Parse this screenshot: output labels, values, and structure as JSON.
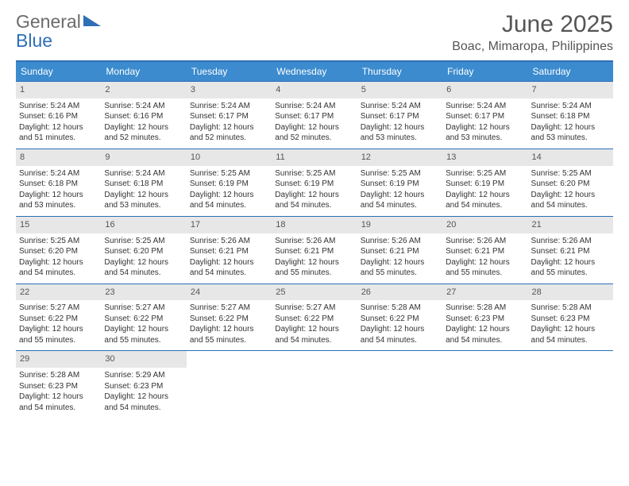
{
  "brand": {
    "left": "General",
    "right": "Blue"
  },
  "title": "June 2025",
  "location": "Boac, Mimaropa, Philippines",
  "colors": {
    "header_bg": "#3b8bce",
    "border": "#2e6fb5",
    "daynum_bg": "#e7e7e7",
    "text": "#333333"
  },
  "day_headers": [
    "Sunday",
    "Monday",
    "Tuesday",
    "Wednesday",
    "Thursday",
    "Friday",
    "Saturday"
  ],
  "weeks": [
    [
      {
        "num": "1",
        "sunrise": "Sunrise: 5:24 AM",
        "sunset": "Sunset: 6:16 PM",
        "daylight": "Daylight: 12 hours and 51 minutes."
      },
      {
        "num": "2",
        "sunrise": "Sunrise: 5:24 AM",
        "sunset": "Sunset: 6:16 PM",
        "daylight": "Daylight: 12 hours and 52 minutes."
      },
      {
        "num": "3",
        "sunrise": "Sunrise: 5:24 AM",
        "sunset": "Sunset: 6:17 PM",
        "daylight": "Daylight: 12 hours and 52 minutes."
      },
      {
        "num": "4",
        "sunrise": "Sunrise: 5:24 AM",
        "sunset": "Sunset: 6:17 PM",
        "daylight": "Daylight: 12 hours and 52 minutes."
      },
      {
        "num": "5",
        "sunrise": "Sunrise: 5:24 AM",
        "sunset": "Sunset: 6:17 PM",
        "daylight": "Daylight: 12 hours and 53 minutes."
      },
      {
        "num": "6",
        "sunrise": "Sunrise: 5:24 AM",
        "sunset": "Sunset: 6:17 PM",
        "daylight": "Daylight: 12 hours and 53 minutes."
      },
      {
        "num": "7",
        "sunrise": "Sunrise: 5:24 AM",
        "sunset": "Sunset: 6:18 PM",
        "daylight": "Daylight: 12 hours and 53 minutes."
      }
    ],
    [
      {
        "num": "8",
        "sunrise": "Sunrise: 5:24 AM",
        "sunset": "Sunset: 6:18 PM",
        "daylight": "Daylight: 12 hours and 53 minutes."
      },
      {
        "num": "9",
        "sunrise": "Sunrise: 5:24 AM",
        "sunset": "Sunset: 6:18 PM",
        "daylight": "Daylight: 12 hours and 53 minutes."
      },
      {
        "num": "10",
        "sunrise": "Sunrise: 5:25 AM",
        "sunset": "Sunset: 6:19 PM",
        "daylight": "Daylight: 12 hours and 54 minutes."
      },
      {
        "num": "11",
        "sunrise": "Sunrise: 5:25 AM",
        "sunset": "Sunset: 6:19 PM",
        "daylight": "Daylight: 12 hours and 54 minutes."
      },
      {
        "num": "12",
        "sunrise": "Sunrise: 5:25 AM",
        "sunset": "Sunset: 6:19 PM",
        "daylight": "Daylight: 12 hours and 54 minutes."
      },
      {
        "num": "13",
        "sunrise": "Sunrise: 5:25 AM",
        "sunset": "Sunset: 6:19 PM",
        "daylight": "Daylight: 12 hours and 54 minutes."
      },
      {
        "num": "14",
        "sunrise": "Sunrise: 5:25 AM",
        "sunset": "Sunset: 6:20 PM",
        "daylight": "Daylight: 12 hours and 54 minutes."
      }
    ],
    [
      {
        "num": "15",
        "sunrise": "Sunrise: 5:25 AM",
        "sunset": "Sunset: 6:20 PM",
        "daylight": "Daylight: 12 hours and 54 minutes."
      },
      {
        "num": "16",
        "sunrise": "Sunrise: 5:25 AM",
        "sunset": "Sunset: 6:20 PM",
        "daylight": "Daylight: 12 hours and 54 minutes."
      },
      {
        "num": "17",
        "sunrise": "Sunrise: 5:26 AM",
        "sunset": "Sunset: 6:21 PM",
        "daylight": "Daylight: 12 hours and 54 minutes."
      },
      {
        "num": "18",
        "sunrise": "Sunrise: 5:26 AM",
        "sunset": "Sunset: 6:21 PM",
        "daylight": "Daylight: 12 hours and 55 minutes."
      },
      {
        "num": "19",
        "sunrise": "Sunrise: 5:26 AM",
        "sunset": "Sunset: 6:21 PM",
        "daylight": "Daylight: 12 hours and 55 minutes."
      },
      {
        "num": "20",
        "sunrise": "Sunrise: 5:26 AM",
        "sunset": "Sunset: 6:21 PM",
        "daylight": "Daylight: 12 hours and 55 minutes."
      },
      {
        "num": "21",
        "sunrise": "Sunrise: 5:26 AM",
        "sunset": "Sunset: 6:21 PM",
        "daylight": "Daylight: 12 hours and 55 minutes."
      }
    ],
    [
      {
        "num": "22",
        "sunrise": "Sunrise: 5:27 AM",
        "sunset": "Sunset: 6:22 PM",
        "daylight": "Daylight: 12 hours and 55 minutes."
      },
      {
        "num": "23",
        "sunrise": "Sunrise: 5:27 AM",
        "sunset": "Sunset: 6:22 PM",
        "daylight": "Daylight: 12 hours and 55 minutes."
      },
      {
        "num": "24",
        "sunrise": "Sunrise: 5:27 AM",
        "sunset": "Sunset: 6:22 PM",
        "daylight": "Daylight: 12 hours and 55 minutes."
      },
      {
        "num": "25",
        "sunrise": "Sunrise: 5:27 AM",
        "sunset": "Sunset: 6:22 PM",
        "daylight": "Daylight: 12 hours and 54 minutes."
      },
      {
        "num": "26",
        "sunrise": "Sunrise: 5:28 AM",
        "sunset": "Sunset: 6:22 PM",
        "daylight": "Daylight: 12 hours and 54 minutes."
      },
      {
        "num": "27",
        "sunrise": "Sunrise: 5:28 AM",
        "sunset": "Sunset: 6:23 PM",
        "daylight": "Daylight: 12 hours and 54 minutes."
      },
      {
        "num": "28",
        "sunrise": "Sunrise: 5:28 AM",
        "sunset": "Sunset: 6:23 PM",
        "daylight": "Daylight: 12 hours and 54 minutes."
      }
    ],
    [
      {
        "num": "29",
        "sunrise": "Sunrise: 5:28 AM",
        "sunset": "Sunset: 6:23 PM",
        "daylight": "Daylight: 12 hours and 54 minutes."
      },
      {
        "num": "30",
        "sunrise": "Sunrise: 5:29 AM",
        "sunset": "Sunset: 6:23 PM",
        "daylight": "Daylight: 12 hours and 54 minutes."
      },
      {
        "empty": true
      },
      {
        "empty": true
      },
      {
        "empty": true
      },
      {
        "empty": true
      },
      {
        "empty": true
      }
    ]
  ]
}
